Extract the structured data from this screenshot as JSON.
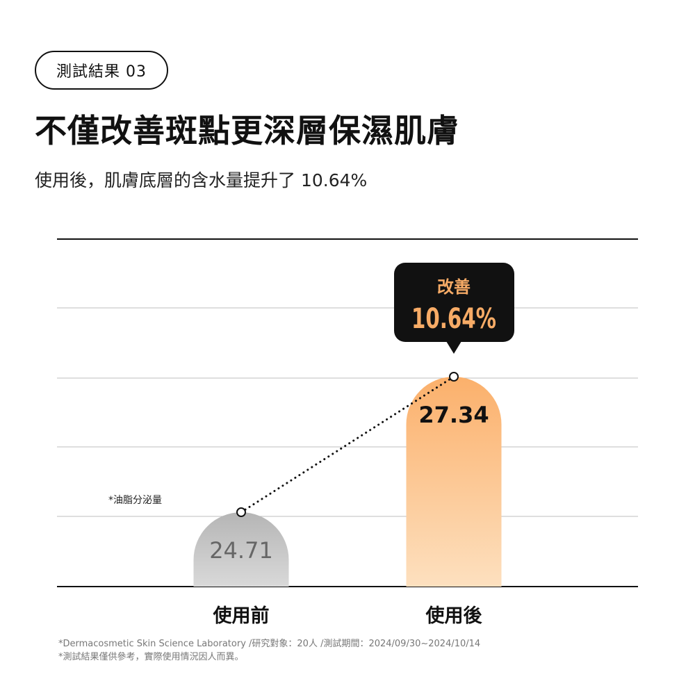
{
  "header": {
    "badge_label": "測試結果 03",
    "headline": "不僅改善斑點更深層保濕肌膚",
    "subline": "使用後，肌膚底層的含水量提升了 10.64%"
  },
  "chart_data": {
    "type": "bar",
    "categories": [
      "使用前",
      "使用後"
    ],
    "values": [
      24.71,
      27.34
    ],
    "value_labels": [
      "24.71",
      "27.34"
    ],
    "title": "",
    "xlabel": "",
    "ylabel": "",
    "grid": true,
    "annotation": {
      "title": "改善",
      "value": "10.64%"
    },
    "note": "*油脂分泌量",
    "colors": {
      "before_top": "#b5b5b5",
      "before_bottom": "#d9d9d9",
      "after_top": "#fbb06b",
      "after_bottom": "#fde0bf",
      "callout_bg": "#111111",
      "callout_text": "#f7ab66",
      "gridline": "#bdbdbd",
      "axis": "#111111"
    }
  },
  "footnotes": [
    "*Dermacosmetic Skin Science Laboratory /研究對象：20人 /測試期間：2024/09/30~2024/10/14",
    "*測試結果僅供參考，實際使用情況因人而異。"
  ]
}
